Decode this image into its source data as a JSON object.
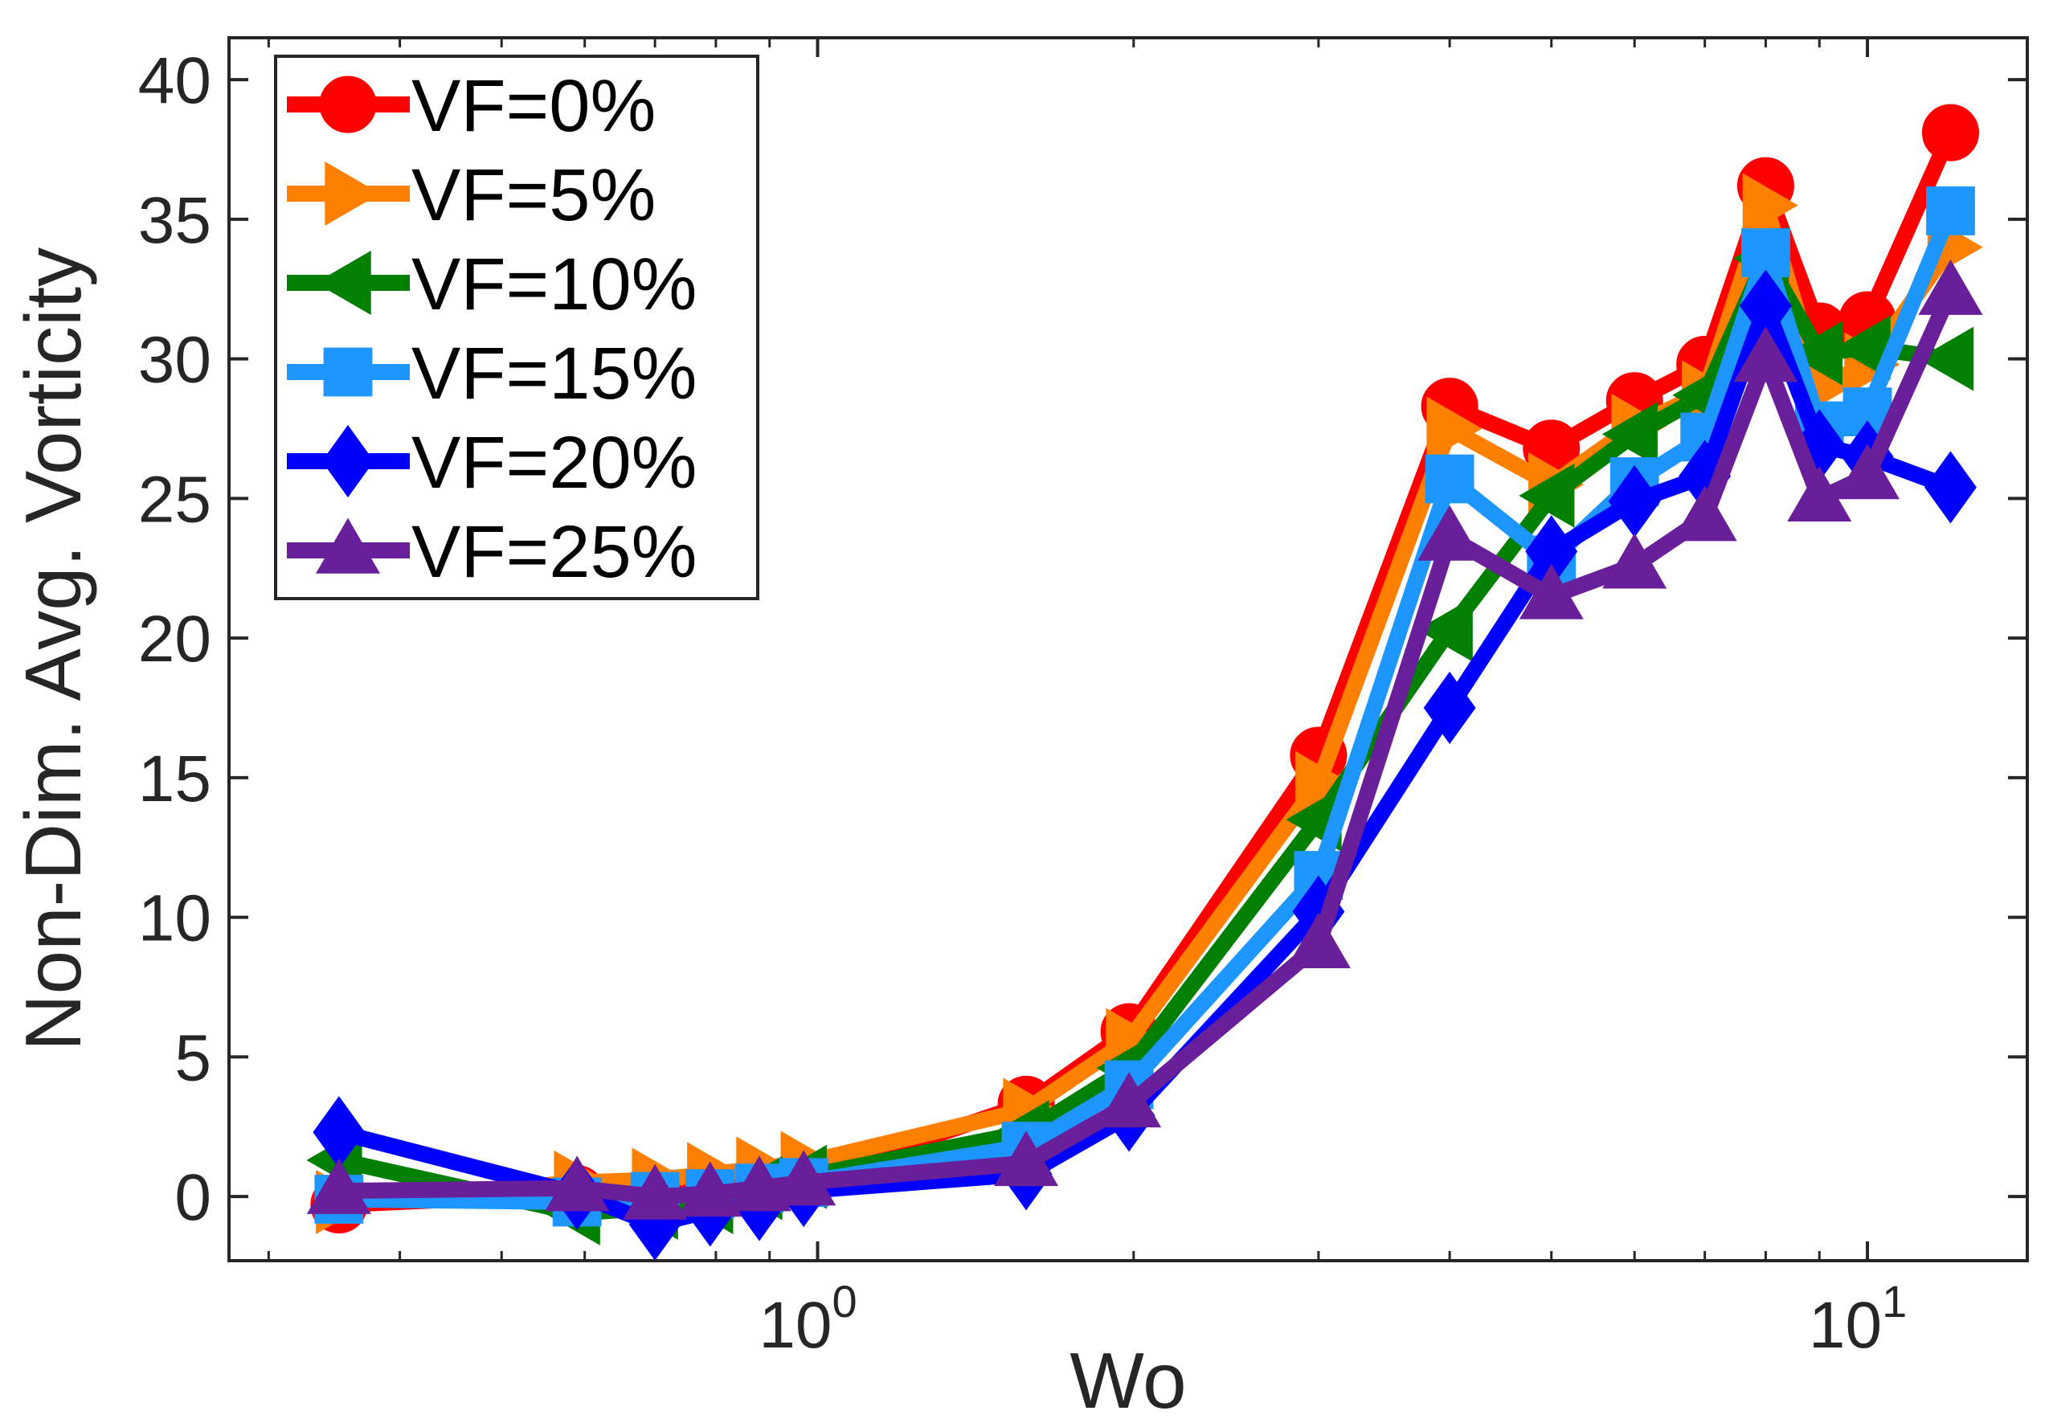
{
  "chart_data": {
    "type": "line",
    "xscale": "log",
    "xlabel": "Wo",
    "ylabel": "Non-Dim. Avg. Vorticity",
    "xlim": [
      0.275,
      14.2
    ],
    "ylim": [
      -2.3,
      41.5
    ],
    "x_ticks": [
      1,
      10
    ],
    "x_tick_labels": [
      {
        "base": "10",
        "exp": "0"
      },
      {
        "base": "10",
        "exp": "1"
      }
    ],
    "y_ticks": [
      0,
      5,
      10,
      15,
      20,
      25,
      30,
      35,
      40
    ],
    "y_tick_labels": [
      "0",
      "5",
      "10",
      "15",
      "20",
      "25",
      "30",
      "35",
      "40"
    ],
    "legend_location": "top-left",
    "x": [
      0.35,
      0.59,
      0.7,
      0.79,
      0.88,
      0.97,
      1.58,
      1.98,
      3.0,
      4.0,
      5.0,
      6.0,
      7.0,
      8.0,
      9.0,
      10.0,
      12.0
    ],
    "series": [
      {
        "name": "VF=0%",
        "color": "#ff0000",
        "marker": "circle",
        "values": [
          -0.3,
          0.1,
          0.0,
          0.2,
          0.4,
          0.6,
          3.3,
          5.9,
          15.8,
          28.3,
          26.8,
          28.5,
          29.8,
          36.2,
          31.0,
          31.4,
          38.1
        ]
      },
      {
        "name": "VF=5%",
        "color": "#ff8000",
        "marker": "triangle-right",
        "values": [
          -0.2,
          0.5,
          0.6,
          0.8,
          1.0,
          1.2,
          3.1,
          5.6,
          14.8,
          27.5,
          25.5,
          27.6,
          28.8,
          35.5,
          29.0,
          29.8,
          34.0
        ]
      },
      {
        "name": "VF=10%",
        "color": "#007f00",
        "marker": "triangle-left",
        "values": [
          1.3,
          -0.6,
          -0.4,
          -0.2,
          0.3,
          0.7,
          2.3,
          4.6,
          13.5,
          20.3,
          25.1,
          27.3,
          28.7,
          33.6,
          30.2,
          30.4,
          30.0
        ]
      },
      {
        "name": "VF=15%",
        "color": "#1e96ff",
        "marker": "square",
        "values": [
          -0.1,
          -0.2,
          0.0,
          0.1,
          0.3,
          0.5,
          1.8,
          4.0,
          11.5,
          25.7,
          22.8,
          25.6,
          27.2,
          33.8,
          27.6,
          28.1,
          35.3
        ]
      },
      {
        "name": "VF=20%",
        "color": "#0000ff",
        "marker": "diamond",
        "values": [
          2.3,
          0.1,
          -1.0,
          -0.5,
          -0.3,
          0.2,
          0.8,
          2.9,
          10.2,
          17.5,
          23.1,
          24.9,
          25.8,
          31.9,
          26.9,
          26.5,
          25.4
        ]
      },
      {
        "name": "VF=25%",
        "color": "#6a1f9a",
        "marker": "triangle-up",
        "values": [
          0.2,
          0.3,
          0.0,
          0.1,
          0.3,
          0.5,
          1.2,
          3.3,
          9.0,
          23.6,
          21.5,
          22.6,
          24.3,
          30.0,
          25.0,
          25.8,
          32.4
        ]
      }
    ]
  }
}
